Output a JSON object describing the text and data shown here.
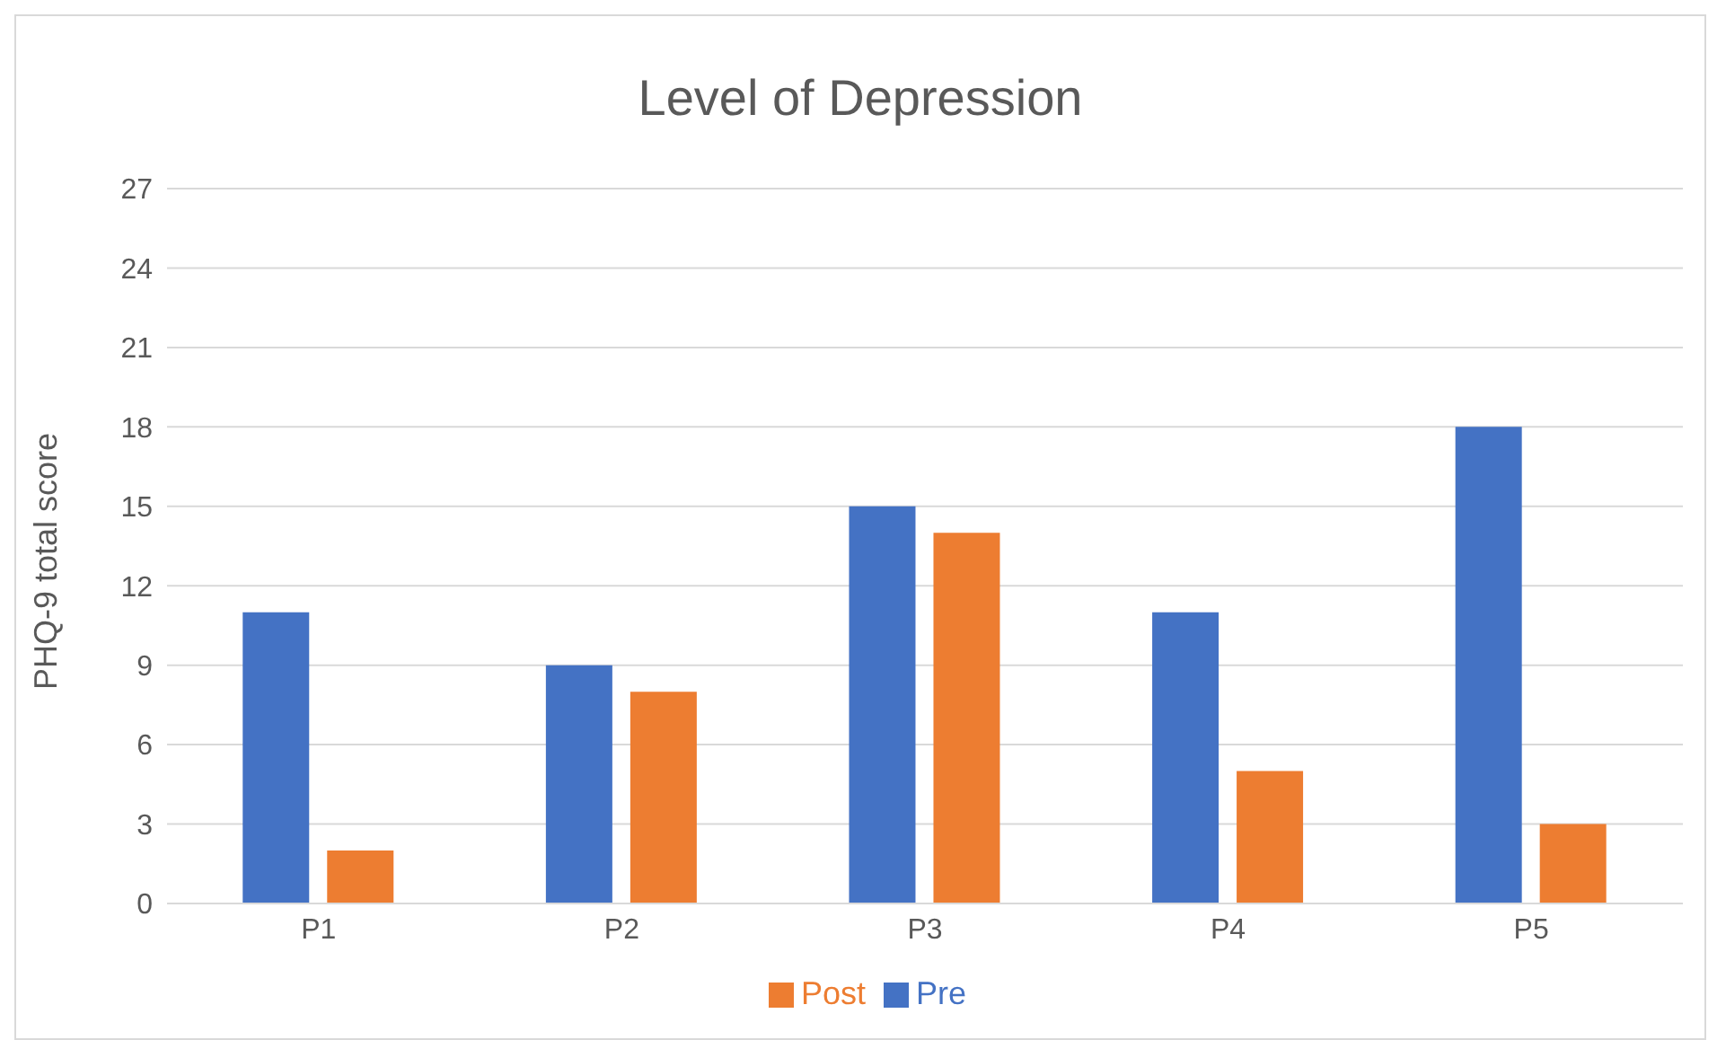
{
  "chart_data": {
    "type": "bar",
    "title": "Level of Depression",
    "ylabel": "PHQ-9 total score",
    "categories": [
      "P1",
      "P2",
      "P3",
      "P4",
      "P5"
    ],
    "series": [
      {
        "name": "Pre",
        "color": "#4472c4",
        "values": [
          11,
          9,
          15,
          11,
          18
        ]
      },
      {
        "name": "Post",
        "color": "#ed7d31",
        "values": [
          2,
          8,
          14,
          5,
          3
        ]
      }
    ],
    "ylim": [
      0,
      27
    ],
    "yticks": [
      0,
      3,
      6,
      9,
      12,
      15,
      18,
      21,
      24,
      27
    ],
    "grid": "y",
    "legend": "bottom"
  }
}
